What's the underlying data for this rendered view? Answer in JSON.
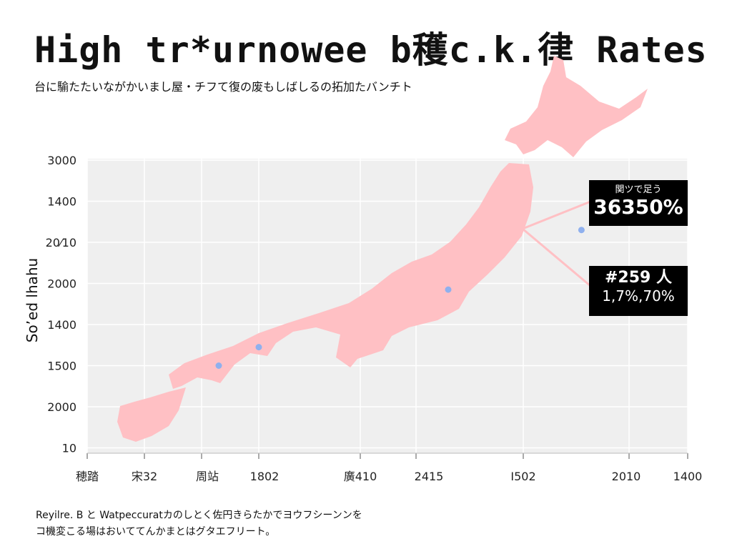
{
  "title": "High  tr*urnowee b穫c.k.律  Rates",
  "subtitle": "台に騟たたいながかいまし屋・チフて復の废もしばしるの拓加たバンチト",
  "footnote": [
    "Reyilre. B と Watpeccuratカのしとく佐円きらたかでヨウフシーンンを",
    "コ機変こる場はおいててんかまとはグタエフリート。"
  ],
  "colors": {
    "map": "#ffc0c4",
    "plot_bg": "#efefef",
    "point": "#8fb0ee",
    "callout_bg": "#000000",
    "grid": "#ffffff"
  },
  "chart_data": {
    "type": "scatter",
    "title": "High  tr*urnowee b穫c.k.律  Rates",
    "ylabel": "So’ed lhahu",
    "y_tick_labels": [
      "3000",
      "1400",
      "20⁄10",
      "2000",
      "1400",
      "1500",
      "2000",
      "10"
    ],
    "x_tick_labels": [
      "穂踏",
      "宋32",
      "周站",
      "1802",
      "廣410",
      "2415",
      "I502",
      "2010",
      "1400"
    ],
    "grid": true,
    "points": [
      {
        "x_index": 2.3,
        "y_index": 5.0
      },
      {
        "x_index": 3.0,
        "y_index": 4.55
      },
      {
        "x_index": 5.3,
        "y_index": 3.15
      },
      {
        "x_index": 6.55,
        "y_index": 1.7
      }
    ],
    "callouts": [
      {
        "label": "関ツで足う",
        "value": "36350%"
      },
      {
        "label": "#259 人",
        "value": "1,7%,70%"
      }
    ]
  }
}
